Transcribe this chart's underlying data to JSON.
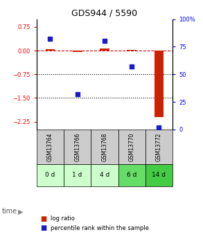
{
  "title": "GDS944 / 5590",
  "samples": [
    "GSM13764",
    "GSM13766",
    "GSM13768",
    "GSM13770",
    "GSM13772"
  ],
  "time_labels": [
    "0 d",
    "1 d",
    "4 d",
    "6 d",
    "14 d"
  ],
  "log_ratios": [
    0.05,
    -0.05,
    0.07,
    0.02,
    -2.1
  ],
  "percentile_ranks": [
    82,
    32,
    80,
    57,
    2
  ],
  "ylim_left": [
    -2.5,
    1.0
  ],
  "ylim_right": [
    0,
    100
  ],
  "yticks_left": [
    0.75,
    0,
    -0.75,
    -1.5,
    -2.25
  ],
  "yticks_right": [
    100,
    75,
    50,
    25,
    0
  ],
  "bar_color": "#cc2200",
  "dot_color": "#1a1acc",
  "dashed_line_color": "#cc0000",
  "dotted_line_color": "#000000",
  "sample_bg": "#cccccc",
  "time_bg_colors": [
    "#ccffcc",
    "#ccffcc",
    "#ccffcc",
    "#66dd66",
    "#44cc44"
  ],
  "legend_bar_color": "#cc2200",
  "legend_dot_color": "#1a1acc"
}
